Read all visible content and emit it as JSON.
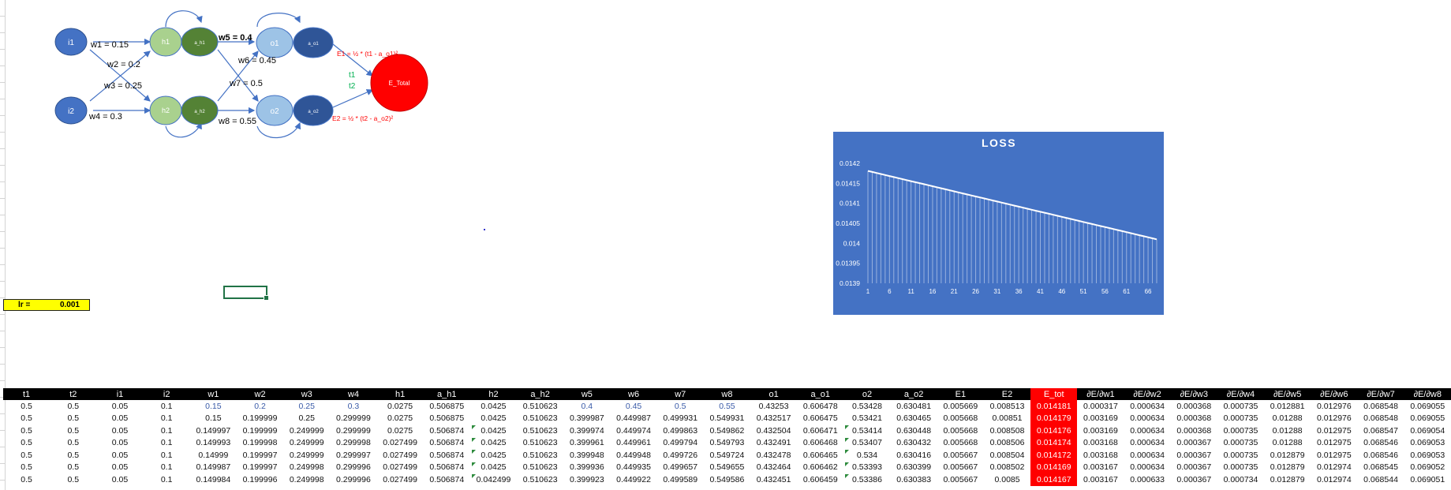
{
  "diagram": {
    "nodes": {
      "i1": "i1",
      "i2": "i2",
      "h1": "h1",
      "h2": "h2",
      "a_h1": "a_h1",
      "a_h2": "a_h2",
      "o1": "o1",
      "o2": "o2",
      "a_o1": "a_o1",
      "a_o2": "a_o2",
      "e_total": "E_Total"
    },
    "weights": {
      "w1": "w1 = 0.15",
      "w2": "w2 = 0.2",
      "w3": "w3 = 0.25",
      "w4": "w4 = 0.3",
      "w5": "w5 = 0.4",
      "w6": "w6 = 0.45",
      "w7": "w7 = 0.5",
      "w8": "w8 = 0.55"
    },
    "targets": {
      "t1": "t1",
      "t2": "t2"
    },
    "errors": {
      "e1": "E1 = ½ * (t1 - a_o1)²",
      "e2": "E2 = ½ * (t2 - a_o2)²"
    },
    "colors": {
      "input": "#4472c4",
      "hidden": "#a9d18e",
      "hidden_act": "#548235",
      "output": "#9dc3e6",
      "output_act": "#2f5597",
      "error": "#ff0000",
      "target_text": "#00b050"
    }
  },
  "lr": {
    "label": "lr =",
    "value": "0.001"
  },
  "chart_data": {
    "type": "area",
    "title": "LOSS",
    "x_start": 1,
    "x_end": 68,
    "y_start": 0.014181,
    "y_end": 0.01401,
    "xticks": [
      "1",
      "6",
      "11",
      "16",
      "21",
      "26",
      "31",
      "36",
      "41",
      "46",
      "51",
      "56",
      "61",
      "66"
    ],
    "yticks": [
      "0.0142",
      "0.01415",
      "0.0141",
      "0.01405",
      "0.014",
      "0.01395",
      "0.0139"
    ],
    "ylim": [
      0.0139,
      0.0142
    ],
    "grid": false,
    "colors": {
      "background": "#4472c4",
      "series": "#ffffff"
    }
  },
  "table": {
    "headers": [
      "t1",
      "t2",
      "i1",
      "i2",
      "w1",
      "w2",
      "w3",
      "w4",
      "h1",
      "a_h1",
      "h2",
      "a_h2",
      "w5",
      "w6",
      "w7",
      "w8",
      "o1",
      "a_o1",
      "o2",
      "a_o2",
      "E1",
      "E2",
      "E_tot",
      "∂E/∂w1",
      "∂E/∂w2",
      "∂E/∂w3",
      "∂E/∂w4",
      "∂E/∂w5",
      "∂E/∂w6",
      "∂E/∂w7",
      "∂E/∂w8"
    ],
    "highlight_column": 22,
    "rows": [
      [
        "0.5",
        "0.5",
        "0.05",
        "0.1",
        "0.15",
        "0.2",
        "0.25",
        "0.3",
        "0.0275",
        "0.506875",
        "0.0425",
        "0.510623",
        "0.4",
        "0.45",
        "0.5",
        "0.55",
        "0.43253",
        "0.606478",
        "0.53428",
        "0.630481",
        "0.005669",
        "0.008513",
        "0.014181",
        "0.000317",
        "0.000634",
        "0.000368",
        "0.000735",
        "0.012881",
        "0.012976",
        "0.068548",
        "0.069055"
      ],
      [
        "0.5",
        "0.5",
        "0.05",
        "0.1",
        "0.15",
        "0.199999",
        "0.25",
        "0.299999",
        "0.0275",
        "0.506875",
        "0.0425",
        "0.510623",
        "0.399987",
        "0.449987",
        "0.499931",
        "0.549931",
        "0.432517",
        "0.606475",
        "0.53421",
        "0.630465",
        "0.005668",
        "0.00851",
        "0.014179",
        "0.003169",
        "0.000634",
        "0.000368",
        "0.000735",
        "0.01288",
        "0.012976",
        "0.068548",
        "0.069055"
      ],
      [
        "0.5",
        "0.5",
        "0.05",
        "0.1",
        "0.149997",
        "0.199999",
        "0.249999",
        "0.299999",
        "0.0275",
        "0.506874",
        "0.0425",
        "0.510623",
        "0.399974",
        "0.449974",
        "0.499863",
        "0.549862",
        "0.432504",
        "0.606471",
        "0.53414",
        "0.630448",
        "0.005668",
        "0.008508",
        "0.014176",
        "0.003169",
        "0.000634",
        "0.000368",
        "0.000735",
        "0.01288",
        "0.012975",
        "0.068547",
        "0.069054"
      ],
      [
        "0.5",
        "0.5",
        "0.05",
        "0.1",
        "0.149993",
        "0.199998",
        "0.249999",
        "0.299998",
        "0.027499",
        "0.506874",
        "0.0425",
        "0.510623",
        "0.399961",
        "0.449961",
        "0.499794",
        "0.549793",
        "0.432491",
        "0.606468",
        "0.53407",
        "0.630432",
        "0.005668",
        "0.008506",
        "0.014174",
        "0.003168",
        "0.000634",
        "0.000367",
        "0.000735",
        "0.01288",
        "0.012975",
        "0.068546",
        "0.069053"
      ],
      [
        "0.5",
        "0.5",
        "0.05",
        "0.1",
        "0.14999",
        "0.199997",
        "0.249999",
        "0.299997",
        "0.027499",
        "0.506874",
        "0.0425",
        "0.510623",
        "0.399948",
        "0.449948",
        "0.499726",
        "0.549724",
        "0.432478",
        "0.606465",
        "0.534",
        "0.630416",
        "0.005667",
        "0.008504",
        "0.014172",
        "0.003168",
        "0.000634",
        "0.000367",
        "0.000735",
        "0.012879",
        "0.012975",
        "0.068546",
        "0.069053"
      ],
      [
        "0.5",
        "0.5",
        "0.05",
        "0.1",
        "0.149987",
        "0.199997",
        "0.249998",
        "0.299996",
        "0.027499",
        "0.506874",
        "0.0425",
        "0.510623",
        "0.399936",
        "0.449935",
        "0.499657",
        "0.549655",
        "0.432464",
        "0.606462",
        "0.53393",
        "0.630399",
        "0.005667",
        "0.008502",
        "0.014169",
        "0.003167",
        "0.000634",
        "0.000367",
        "0.000735",
        "0.012879",
        "0.012974",
        "0.068545",
        "0.069052"
      ],
      [
        "0.5",
        "0.5",
        "0.05",
        "0.1",
        "0.149984",
        "0.199996",
        "0.249998",
        "0.299996",
        "0.027499",
        "0.506874",
        "0.042499",
        "0.510623",
        "0.399923",
        "0.449922",
        "0.499589",
        "0.549586",
        "0.432451",
        "0.606459",
        "0.53386",
        "0.630383",
        "0.005667",
        "0.0085",
        "0.014167",
        "0.003167",
        "0.000633",
        "0.000367",
        "0.000734",
        "0.012879",
        "0.012974",
        "0.068544",
        "0.069051"
      ]
    ]
  }
}
